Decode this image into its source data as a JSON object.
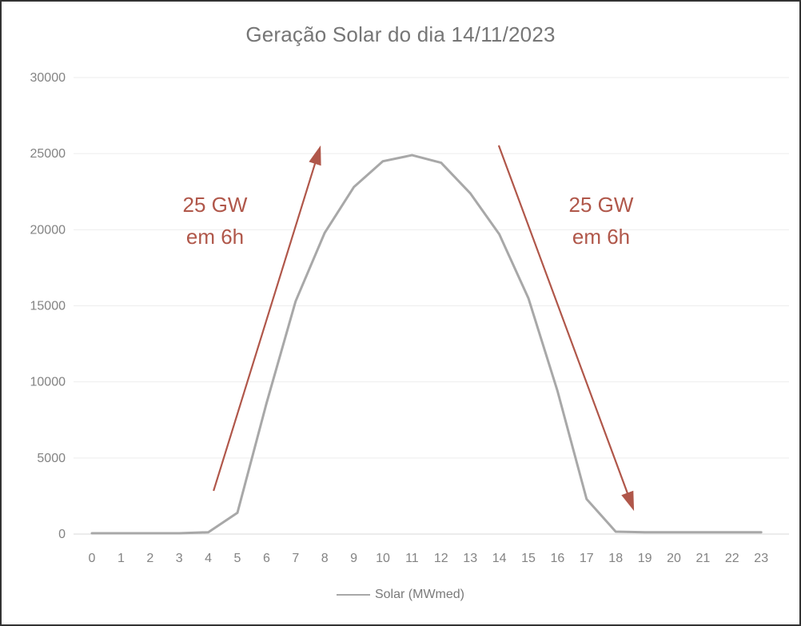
{
  "chart_data": {
    "type": "line",
    "title": "Geração Solar do dia 14/11/2023",
    "xlabel": "",
    "ylabel": "",
    "x": [
      0,
      1,
      2,
      3,
      4,
      5,
      6,
      7,
      8,
      9,
      10,
      11,
      12,
      13,
      14,
      15,
      16,
      17,
      18,
      19,
      20,
      21,
      22,
      23
    ],
    "series": [
      {
        "name": "Solar (MWmed)",
        "color": "#a8a8a8",
        "values": [
          50,
          50,
          50,
          50,
          120,
          1400,
          8600,
          15300,
          19800,
          22800,
          24500,
          24900,
          24400,
          22400,
          19700,
          15500,
          9400,
          2300,
          160,
          120,
          120,
          120,
          120,
          120
        ]
      }
    ],
    "ylim": [
      0,
      30000
    ],
    "yticks": [
      0,
      5000,
      10000,
      15000,
      20000,
      25000,
      30000
    ],
    "grid": true,
    "legend_position": "bottom",
    "colors": {
      "grid": "#ededed",
      "zero_axis": "#d9d9d9",
      "ticks": "#838383",
      "title": "#767676",
      "annotation": "#b0574a"
    },
    "annotations": [
      {
        "id": "ramp-up",
        "lines": [
          "25 GW",
          "em 6h"
        ],
        "color": "#b0574a",
        "arrow": {
          "from": {
            "x": 4.18,
            "y": 2840
          },
          "to": {
            "x": 7.86,
            "y": 25540
          }
        }
      },
      {
        "id": "ramp-down",
        "lines": [
          "25 GW",
          "em 6h"
        ],
        "color": "#b0574a",
        "arrow": {
          "from": {
            "x": 13.98,
            "y": 25540
          },
          "to": {
            "x": 18.63,
            "y": 1520
          }
        }
      }
    ]
  }
}
